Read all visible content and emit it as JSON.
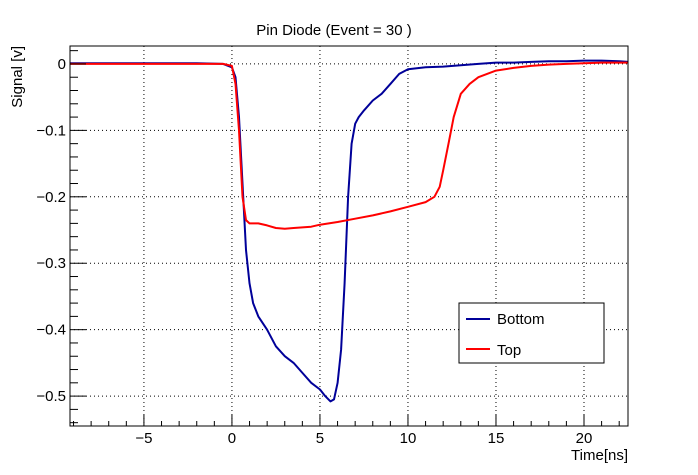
{
  "chart_data": {
    "type": "line",
    "title": "Pin Diode (Event = 30 )",
    "xlabel": "Time[ns]",
    "ylabel": "Signal [v]",
    "xlim": [
      -9.2,
      22.5
    ],
    "ylim": [
      -0.545,
      0.027
    ],
    "x_ticks": [
      -5,
      0,
      5,
      10,
      15,
      20
    ],
    "y_ticks": [
      0,
      -0.1,
      -0.2,
      -0.3,
      -0.4,
      -0.5
    ],
    "x_tick_labels": [
      "−5",
      "0",
      "5",
      "10",
      "15",
      "20"
    ],
    "y_tick_labels": [
      "0",
      "−0.1",
      "−0.2",
      "−0.3",
      "−0.4",
      "−0.5"
    ],
    "grid": true,
    "legend_position": "lower-right",
    "series": [
      {
        "name": "Bottom",
        "color": "#000099",
        "x": [
          -9.2,
          -8,
          -6,
          -4,
          -2,
          -0.5,
          0,
          0.2,
          0.4,
          0.6,
          0.8,
          1.0,
          1.2,
          1.5,
          2.0,
          2.5,
          3.0,
          3.5,
          4.0,
          4.5,
          5.0,
          5.3,
          5.6,
          5.8,
          6.0,
          6.2,
          6.4,
          6.6,
          6.8,
          7.0,
          7.2,
          7.5,
          8.0,
          8.5,
          9.0,
          9.5,
          10,
          11,
          12,
          13,
          14,
          15,
          16,
          17,
          18,
          19,
          20,
          21,
          22,
          22.5
        ],
        "y": [
          0.001,
          0.001,
          0.001,
          0.001,
          0.001,
          0.0,
          -0.005,
          -0.02,
          -0.08,
          -0.18,
          -0.28,
          -0.33,
          -0.36,
          -0.38,
          -0.4,
          -0.425,
          -0.44,
          -0.45,
          -0.465,
          -0.48,
          -0.49,
          -0.5,
          -0.508,
          -0.505,
          -0.48,
          -0.43,
          -0.33,
          -0.2,
          -0.12,
          -0.09,
          -0.08,
          -0.07,
          -0.055,
          -0.045,
          -0.03,
          -0.015,
          -0.008,
          -0.005,
          -0.004,
          -0.002,
          0.0,
          0.002,
          0.002,
          0.003,
          0.004,
          0.004,
          0.005,
          0.005,
          0.004,
          0.003
        ]
      },
      {
        "name": "Top",
        "color": "#ff0000",
        "x": [
          -9.2,
          -8,
          -6,
          -4,
          -2,
          -0.5,
          0,
          0.2,
          0.4,
          0.6,
          0.8,
          1.0,
          1.5,
          2.0,
          2.5,
          3.0,
          3.5,
          4.0,
          4.5,
          5.0,
          6.0,
          7.0,
          8.0,
          9.0,
          10.0,
          11.0,
          11.5,
          11.8,
          12.0,
          12.3,
          12.6,
          13.0,
          13.5,
          14.0,
          15.0,
          16.0,
          17.0,
          18.0,
          19.0,
          20.0,
          21.0,
          22.0,
          22.5
        ],
        "y": [
          0.0,
          0.0,
          0.0,
          0.0,
          0.0,
          0.0,
          -0.003,
          -0.03,
          -0.1,
          -0.2,
          -0.235,
          -0.24,
          -0.24,
          -0.243,
          -0.247,
          -0.248,
          -0.247,
          -0.246,
          -0.245,
          -0.242,
          -0.238,
          -0.233,
          -0.228,
          -0.222,
          -0.215,
          -0.208,
          -0.2,
          -0.185,
          -0.16,
          -0.12,
          -0.08,
          -0.045,
          -0.03,
          -0.02,
          -0.01,
          -0.006,
          -0.003,
          -0.001,
          0.0,
          0.001,
          0.002,
          0.002,
          0.002
        ]
      }
    ]
  }
}
